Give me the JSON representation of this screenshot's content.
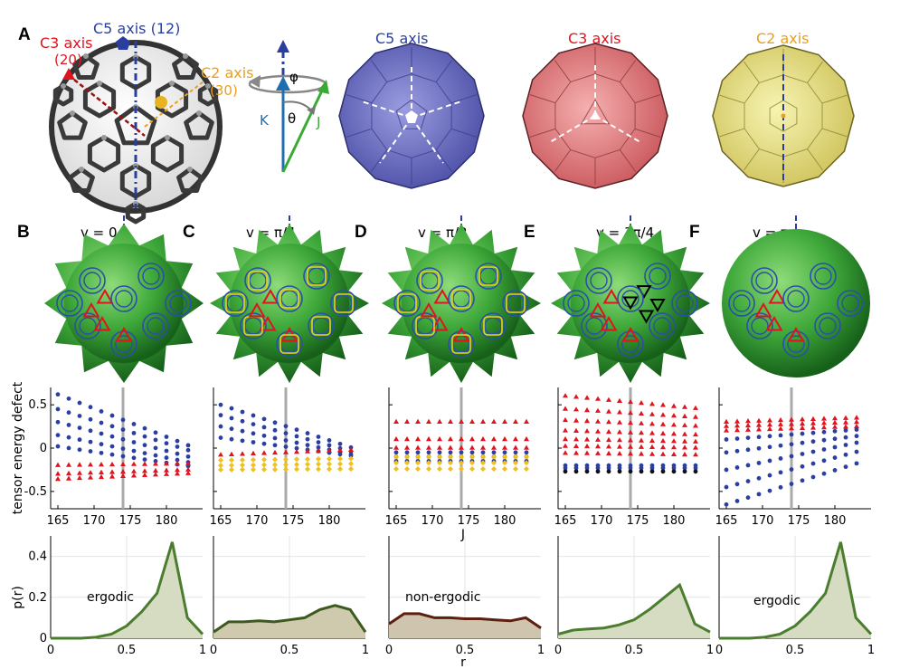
{
  "panel_letters": [
    "A",
    "B",
    "C",
    "D",
    "E",
    "F"
  ],
  "panelA": {
    "c5_axis": "C5 axis (12)",
    "c3_axis": "C3 axis",
    "c3_count": "(20)",
    "c2_axis": "C2 axis",
    "c2_count": "(30)",
    "phi": "φ",
    "theta": "θ",
    "K": "K",
    "J": "J",
    "colors": {
      "c5": "#2a3f9d",
      "c3": "#e0141e",
      "c2": "#e8a020",
      "J": "#3aaa35",
      "K": "#1f6fb0"
    },
    "polyhedra": [
      {
        "label": "C5 axis",
        "color": "#2a3f9d",
        "fill": "#5e62b6"
      },
      {
        "label": "C3 axis",
        "color": "#e0141e",
        "fill": "#e0767a"
      },
      {
        "label": "C2 axis",
        "color": "#e8a020",
        "fill": "#e6e07a"
      }
    ]
  },
  "surface_panels": [
    {
      "letter": "B",
      "v": "v = 0"
    },
    {
      "letter": "C",
      "v": "v = π/4"
    },
    {
      "letter": "D",
      "v": "v = π/2"
    },
    {
      "letter": "E",
      "v": "v = 3π/4"
    },
    {
      "letter": "F",
      "v": "v = π"
    }
  ],
  "chart_data": [
    {
      "type": "scatter",
      "panel": "B",
      "ylabel": "tensor energy defect",
      "ylim": [
        -0.7,
        0.7
      ],
      "xlim": [
        164,
        185
      ],
      "x_ticks": [
        165,
        170,
        175,
        180
      ],
      "y_ticks": [
        -0.5,
        0,
        0.5
      ],
      "marker_line_x": 174,
      "series": [
        {
          "color": "#2a3fa0",
          "marker": "dot",
          "bands": [
            [
              0.62,
              0.0
            ],
            [
              0.45,
              -0.05
            ],
            [
              0.3,
              -0.12
            ],
            [
              0.15,
              -0.18
            ],
            [
              0.02,
              -0.22
            ]
          ]
        },
        {
          "color": "#e0141e",
          "marker": "triangle",
          "bands": [
            [
              -0.2,
              -0.18
            ],
            [
              -0.3,
              -0.25
            ],
            [
              -0.36,
              -0.29
            ]
          ]
        }
      ]
    },
    {
      "type": "scatter",
      "panel": "C",
      "ylim": [
        -0.7,
        0.7
      ],
      "xlim": [
        164,
        185
      ],
      "x_ticks": [
        165,
        170,
        175,
        180
      ],
      "marker_line_x": 174,
      "series": [
        {
          "color": "#2a3fa0",
          "marker": "dot",
          "bands": [
            [
              0.5,
              -0.02
            ],
            [
              0.38,
              -0.06
            ],
            [
              0.25,
              -0.09
            ],
            [
              0.12,
              -0.1
            ]
          ]
        },
        {
          "color": "#e0141e",
          "marker": "triangle",
          "bands": [
            [
              -0.08,
              -0.02
            ]
          ]
        },
        {
          "color": "#f0c020",
          "marker": "diamond",
          "bands": [
            [
              -0.14,
              -0.12
            ],
            [
              -0.2,
              -0.18
            ],
            [
              -0.25,
              -0.24
            ]
          ]
        }
      ]
    },
    {
      "type": "scatter",
      "panel": "D",
      "ylim": [
        -0.7,
        0.7
      ],
      "xlim": [
        164,
        185
      ],
      "x_ticks": [
        165,
        170,
        175,
        180
      ],
      "xlabel": "J",
      "marker_line_x": 174,
      "series": [
        {
          "color": "#e0141e",
          "marker": "triangle",
          "bands": [
            [
              0.3,
              0.3
            ],
            [
              0.1,
              0.1
            ],
            [
              0.0,
              0.0
            ]
          ]
        },
        {
          "color": "#2a3fa0",
          "marker": "dot",
          "bands": [
            [
              -0.05,
              -0.05
            ],
            [
              -0.1,
              -0.1
            ],
            [
              -0.15,
              -0.15
            ]
          ]
        },
        {
          "color": "#f0c020",
          "marker": "diamond",
          "bands": [
            [
              -0.1,
              -0.1
            ],
            [
              -0.17,
              -0.17
            ],
            [
              -0.24,
              -0.24
            ]
          ]
        }
      ]
    },
    {
      "type": "scatter",
      "panel": "E",
      "ylim": [
        -0.7,
        0.7
      ],
      "xlim": [
        164,
        185
      ],
      "x_ticks": [
        165,
        170,
        175,
        180
      ],
      "marker_line_x": 174,
      "series": [
        {
          "color": "#e0141e",
          "marker": "triangle",
          "bands": [
            [
              0.6,
              0.45
            ],
            [
              0.45,
              0.35
            ],
            [
              0.32,
              0.25
            ],
            [
              0.2,
              0.15
            ],
            [
              0.1,
              0.07
            ],
            [
              0.02,
              0.0
            ],
            [
              -0.06,
              -0.08
            ]
          ]
        },
        {
          "color": "#2a3fa0",
          "marker": "dot",
          "bands": [
            [
              -0.2,
              -0.2
            ],
            [
              -0.23,
              -0.23
            ]
          ]
        },
        {
          "color": "#111111",
          "marker": "dot",
          "bands": [
            [
              -0.27,
              -0.27
            ]
          ]
        }
      ]
    },
    {
      "type": "scatter",
      "panel": "F",
      "ylim": [
        -0.7,
        0.7
      ],
      "xlim": [
        164,
        185
      ],
      "x_ticks": [
        165,
        170,
        175,
        180
      ],
      "marker_line_x": 174,
      "series": [
        {
          "color": "#e0141e",
          "marker": "triangle",
          "bands": [
            [
              0.3,
              0.35
            ],
            [
              0.25,
              0.3
            ],
            [
              0.2,
              0.25
            ]
          ]
        },
        {
          "color": "#2a3fa0",
          "marker": "dot",
          "bands": [
            [
              0.1,
              0.22
            ],
            [
              -0.05,
              0.15
            ],
            [
              -0.25,
              0.08
            ],
            [
              -0.45,
              -0.02
            ],
            [
              -0.65,
              -0.15
            ]
          ]
        }
      ]
    },
    {
      "type": "area",
      "panel": "B",
      "ylabel": "p(r)",
      "label": "ergodic",
      "x": [
        0,
        0.1,
        0.2,
        0.3,
        0.4,
        0.5,
        0.6,
        0.7,
        0.8,
        0.9,
        1.0
      ],
      "y": [
        0,
        0,
        0,
        0.005,
        0.02,
        0.06,
        0.13,
        0.22,
        0.47,
        0.1,
        0.02
      ],
      "ylim": [
        0,
        0.5
      ],
      "y_ticks": [
        0,
        0.2,
        0.4
      ],
      "x_ticks": [
        0,
        0.5,
        1
      ],
      "line_color": "#4a7d2e",
      "fill_color": "#d6dcc2"
    },
    {
      "type": "area",
      "panel": "C",
      "x": [
        0,
        0.1,
        0.2,
        0.3,
        0.4,
        0.5,
        0.6,
        0.7,
        0.8,
        0.9,
        1.0
      ],
      "y": [
        0.03,
        0.08,
        0.08,
        0.085,
        0.08,
        0.09,
        0.1,
        0.14,
        0.16,
        0.14,
        0.03
      ],
      "ylim": [
        0,
        0.5
      ],
      "x_ticks": [
        0,
        0.5,
        1
      ],
      "line_color": "#3d5a1e",
      "fill_color": "#cfc9ae"
    },
    {
      "type": "area",
      "panel": "D",
      "label": "non-ergodic",
      "xlabel": "r",
      "x": [
        0,
        0.1,
        0.2,
        0.3,
        0.4,
        0.5,
        0.6,
        0.7,
        0.8,
        0.9,
        1.0
      ],
      "y": [
        0.07,
        0.12,
        0.12,
        0.1,
        0.1,
        0.095,
        0.095,
        0.09,
        0.085,
        0.1,
        0.05
      ],
      "ylim": [
        0,
        0.5
      ],
      "x_ticks": [
        0,
        0.5,
        1
      ],
      "line_color": "#5a2010",
      "fill_color": "#cfc4ae"
    },
    {
      "type": "area",
      "panel": "E",
      "x": [
        0,
        0.1,
        0.2,
        0.3,
        0.4,
        0.5,
        0.6,
        0.7,
        0.8,
        0.9,
        1.0
      ],
      "y": [
        0.02,
        0.04,
        0.045,
        0.05,
        0.065,
        0.09,
        0.14,
        0.2,
        0.26,
        0.07,
        0.03
      ],
      "ylim": [
        0,
        0.5
      ],
      "x_ticks": [
        0,
        0.5,
        1
      ],
      "line_color": "#4a7d2e",
      "fill_color": "#d6dcc2"
    },
    {
      "type": "area",
      "panel": "F",
      "label": "ergodic",
      "x": [
        0,
        0.1,
        0.2,
        0.3,
        0.4,
        0.5,
        0.6,
        0.7,
        0.8,
        0.9,
        1.0
      ],
      "y": [
        0,
        0,
        0,
        0.005,
        0.02,
        0.06,
        0.13,
        0.22,
        0.47,
        0.1,
        0.02
      ],
      "ylim": [
        0,
        0.5
      ],
      "x_ticks": [
        0,
        0.5,
        1
      ],
      "line_color": "#4a7d2e",
      "fill_color": "#d6dcc2"
    }
  ]
}
